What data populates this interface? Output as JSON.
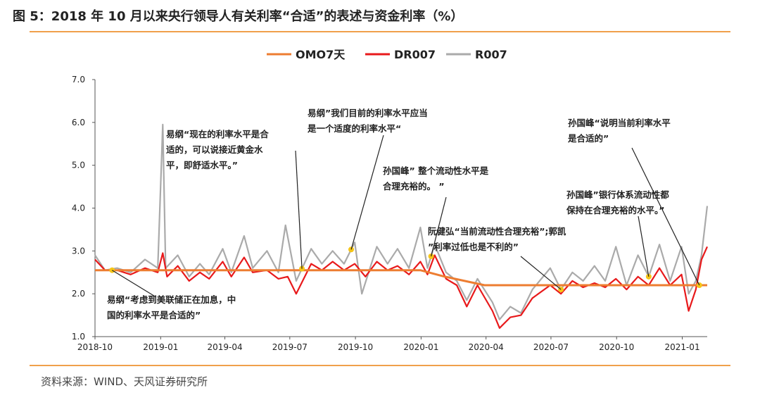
{
  "title": "图 5：2018 年 10 月以来央行领导人有关利率“合适”的表述与资金利率（%）",
  "source": "资料来源：WIND、天风证券研究所",
  "colors": {
    "omo": "#ed7d31",
    "dr": "#e8191b",
    "r": "#aaaaaa",
    "marker": "#f5c518",
    "rule": "#f0a04b"
  },
  "chart_data": {
    "type": "line",
    "x_ticks": [
      "2018-10",
      "2019-01",
      "2019-04",
      "2019-07",
      "2019-10",
      "2020-01",
      "2020-04",
      "2020-07",
      "2020-10",
      "2021-01"
    ],
    "y_ticks": [
      "7.0",
      "6.0",
      "5.0",
      "4.0",
      "3.0",
      "2.0",
      "1.0"
    ],
    "ylim": [
      1.0,
      7.0
    ],
    "xlim": [
      "2018-10-01",
      "2021-02-05"
    ],
    "series": [
      {
        "name": "OMO7天",
        "key": "omo",
        "points": [
          [
            "2018-10-01",
            2.55
          ],
          [
            "2019-12-31",
            2.55
          ],
          [
            "2020-02-03",
            2.4
          ],
          [
            "2020-03-30",
            2.2
          ],
          [
            "2021-02-05",
            2.2
          ]
        ]
      },
      {
        "name": "DR007",
        "key": "dr",
        "points": [
          [
            "2018-10-01",
            2.8
          ],
          [
            "2018-10-15",
            2.55
          ],
          [
            "2018-11-01",
            2.55
          ],
          [
            "2018-11-20",
            2.45
          ],
          [
            "2018-12-10",
            2.6
          ],
          [
            "2018-12-28",
            2.5
          ],
          [
            "2019-01-04",
            2.95
          ],
          [
            "2019-01-10",
            2.4
          ],
          [
            "2019-01-25",
            2.65
          ],
          [
            "2019-02-10",
            2.3
          ],
          [
            "2019-02-25",
            2.5
          ],
          [
            "2019-03-10",
            2.35
          ],
          [
            "2019-03-29",
            2.75
          ],
          [
            "2019-04-10",
            2.4
          ],
          [
            "2019-04-28",
            2.85
          ],
          [
            "2019-05-10",
            2.5
          ],
          [
            "2019-05-30",
            2.55
          ],
          [
            "2019-06-15",
            2.35
          ],
          [
            "2019-06-28",
            2.4
          ],
          [
            "2019-07-10",
            2.0
          ],
          [
            "2019-07-31",
            2.7
          ],
          [
            "2019-08-15",
            2.55
          ],
          [
            "2019-08-30",
            2.75
          ],
          [
            "2019-09-15",
            2.55
          ],
          [
            "2019-09-30",
            2.7
          ],
          [
            "2019-10-15",
            2.4
          ],
          [
            "2019-10-31",
            2.75
          ],
          [
            "2019-11-15",
            2.55
          ],
          [
            "2019-11-29",
            2.65
          ],
          [
            "2019-12-15",
            2.45
          ],
          [
            "2019-12-31",
            2.75
          ],
          [
            "2020-01-10",
            2.45
          ],
          [
            "2020-01-20",
            2.9
          ],
          [
            "2020-02-05",
            2.35
          ],
          [
            "2020-02-20",
            2.2
          ],
          [
            "2020-03-05",
            1.7
          ],
          [
            "2020-03-20",
            2.2
          ],
          [
            "2020-04-10",
            1.6
          ],
          [
            "2020-04-20",
            1.2
          ],
          [
            "2020-05-05",
            1.45
          ],
          [
            "2020-05-20",
            1.5
          ],
          [
            "2020-06-05",
            1.9
          ],
          [
            "2020-06-30",
            2.2
          ],
          [
            "2020-07-15",
            2.0
          ],
          [
            "2020-07-31",
            2.3
          ],
          [
            "2020-08-15",
            2.15
          ],
          [
            "2020-08-31",
            2.25
          ],
          [
            "2020-09-15",
            2.15
          ],
          [
            "2020-09-30",
            2.35
          ],
          [
            "2020-10-15",
            2.1
          ],
          [
            "2020-10-31",
            2.4
          ],
          [
            "2020-11-15",
            2.2
          ],
          [
            "2020-11-30",
            2.6
          ],
          [
            "2020-12-15",
            2.2
          ],
          [
            "2020-12-31",
            2.45
          ],
          [
            "2021-01-10",
            1.6
          ],
          [
            "2021-01-20",
            2.1
          ],
          [
            "2021-01-28",
            2.8
          ],
          [
            "2021-02-05",
            3.1
          ]
        ]
      },
      {
        "name": "R007",
        "key": "r",
        "points": [
          [
            "2018-10-01",
            2.9
          ],
          [
            "2018-10-15",
            2.55
          ],
          [
            "2018-11-01",
            2.6
          ],
          [
            "2018-11-20",
            2.5
          ],
          [
            "2018-12-10",
            2.8
          ],
          [
            "2018-12-28",
            2.6
          ],
          [
            "2019-01-04",
            5.95
          ],
          [
            "2019-01-08",
            2.6
          ],
          [
            "2019-01-25",
            2.9
          ],
          [
            "2019-02-10",
            2.4
          ],
          [
            "2019-02-25",
            2.7
          ],
          [
            "2019-03-10",
            2.45
          ],
          [
            "2019-03-29",
            3.05
          ],
          [
            "2019-04-10",
            2.5
          ],
          [
            "2019-04-28",
            3.35
          ],
          [
            "2019-05-10",
            2.6
          ],
          [
            "2019-05-30",
            3.0
          ],
          [
            "2019-06-15",
            2.5
          ],
          [
            "2019-06-25",
            3.6
          ],
          [
            "2019-07-10",
            2.3
          ],
          [
            "2019-07-31",
            3.05
          ],
          [
            "2019-08-15",
            2.7
          ],
          [
            "2019-08-30",
            3.0
          ],
          [
            "2019-09-15",
            2.7
          ],
          [
            "2019-09-30",
            3.2
          ],
          [
            "2019-10-10",
            2.0
          ],
          [
            "2019-10-31",
            3.1
          ],
          [
            "2019-11-15",
            2.7
          ],
          [
            "2019-11-29",
            3.05
          ],
          [
            "2019-12-15",
            2.6
          ],
          [
            "2019-12-31",
            3.55
          ],
          [
            "2020-01-10",
            2.6
          ],
          [
            "2020-01-20",
            3.15
          ],
          [
            "2020-02-05",
            2.5
          ],
          [
            "2020-02-20",
            2.3
          ],
          [
            "2020-03-05",
            1.85
          ],
          [
            "2020-03-20",
            2.35
          ],
          [
            "2020-04-10",
            1.8
          ],
          [
            "2020-04-20",
            1.4
          ],
          [
            "2020-05-05",
            1.7
          ],
          [
            "2020-05-20",
            1.55
          ],
          [
            "2020-06-05",
            2.1
          ],
          [
            "2020-06-30",
            2.6
          ],
          [
            "2020-07-15",
            2.1
          ],
          [
            "2020-07-31",
            2.5
          ],
          [
            "2020-08-15",
            2.3
          ],
          [
            "2020-08-31",
            2.65
          ],
          [
            "2020-09-15",
            2.3
          ],
          [
            "2020-09-30",
            3.1
          ],
          [
            "2020-10-15",
            2.2
          ],
          [
            "2020-10-31",
            2.9
          ],
          [
            "2020-11-15",
            2.4
          ],
          [
            "2020-11-30",
            3.15
          ],
          [
            "2020-12-15",
            2.3
          ],
          [
            "2020-12-31",
            3.1
          ],
          [
            "2021-01-10",
            2.0
          ],
          [
            "2021-01-20",
            2.3
          ],
          [
            "2021-01-28",
            2.9
          ],
          [
            "2021-02-05",
            4.05
          ]
        ]
      }
    ],
    "annotations": [
      {
        "lines": [
          "易纲“考虑到美联储正在加息，中",
          "国的利率水平是合适的”"
        ],
        "date": "2018-10-25"
      },
      {
        "lines": [
          "易纲“现在的利率水平是合",
          "适的，可以说接近黄金水",
          "平，即舒适水平。”"
        ],
        "date": "2019-07-18"
      },
      {
        "lines": [
          "易纲”我们目前的利率水平应当",
          "是一个适度的利率水平“"
        ],
        "date": "2019-09-25"
      },
      {
        "lines": [
          "孙国峰” 整个流动性水平是",
          "合理充裕的。 ”"
        ],
        "date": "2020-01-15"
      },
      {
        "lines": [
          "阮健弘“当前流动性合理充裕”;郭凯",
          "”利率过低也是不利的”"
        ],
        "date": "2020-07-15"
      },
      {
        "lines": [
          "孙国峰“说明当前利率水平",
          "是合适的”"
        ],
        "date": "2021-01-25"
      },
      {
        "lines": [
          "孙国峰”银行体系流动性都",
          "保持在合理充裕的水平。”"
        ],
        "date": "2020-11-15"
      }
    ]
  }
}
